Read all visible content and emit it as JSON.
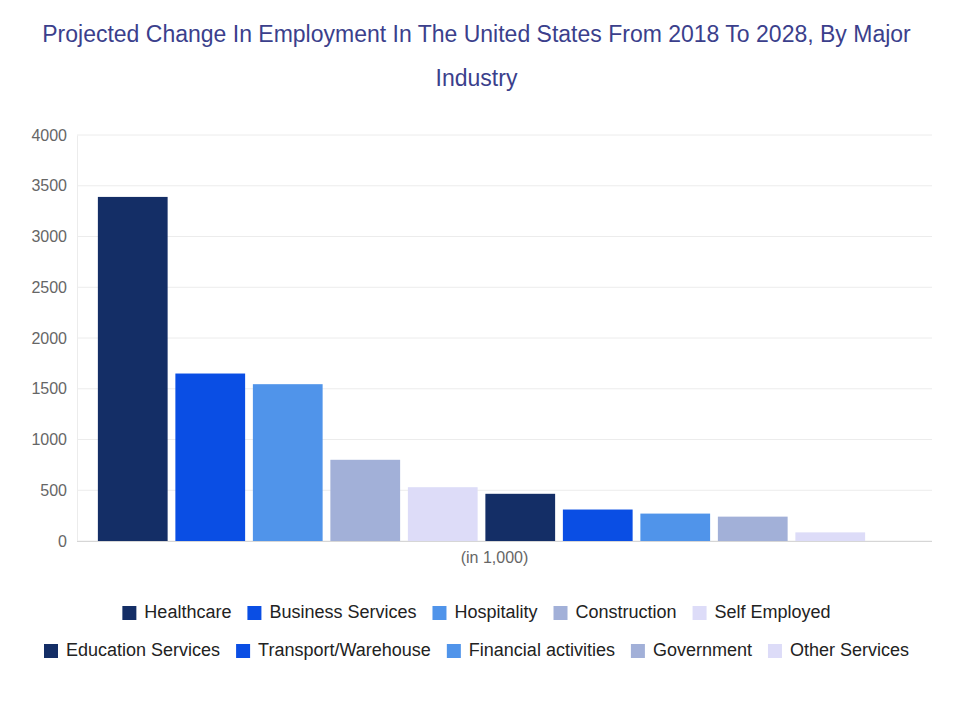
{
  "chart_data": {
    "type": "bar",
    "title": "Projected Change In Employment In The United States From 2018 To 2028, By Major Industry",
    "x_label": "(in 1,000)",
    "categories": [
      "Healthcare",
      "Business Services",
      "Hospitality",
      "Construction",
      "Self Employed",
      "Education Services",
      "Transport/Warehouse",
      "Financial activities",
      "Government",
      "Other Services"
    ],
    "values": [
      3390,
      1650,
      1545,
      800,
      530,
      465,
      310,
      270,
      240,
      85
    ],
    "colors": [
      "#142e66",
      "#0a4ee4",
      "#5094ea",
      "#a2b0d8",
      "#dddcf8",
      "#142e66",
      "#0a4ee4",
      "#5094ea",
      "#a2b0d8",
      "#dddcf8"
    ],
    "ylim": [
      0,
      4000
    ],
    "yticks": [
      0,
      500,
      1000,
      1500,
      2000,
      2500,
      3000,
      3500,
      4000
    ],
    "grid": true,
    "legend": "bottom",
    "tick_labels": "y"
  }
}
